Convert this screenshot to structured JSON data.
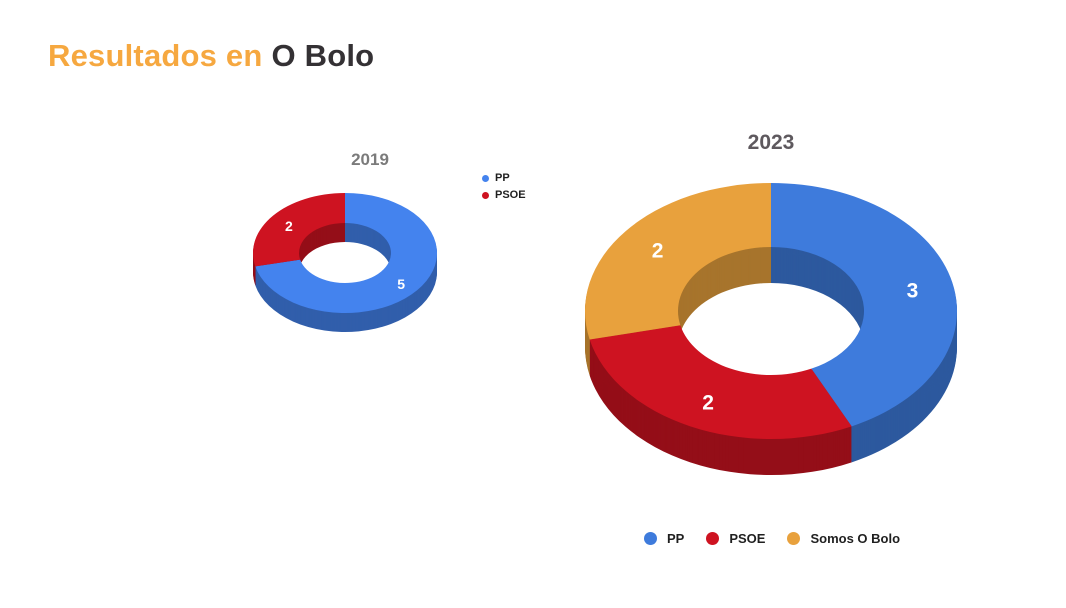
{
  "background": "#FFFFFF",
  "title": {
    "part1": "Resultados en",
    "part2": "O Bolo",
    "accent_color": "#F6A840",
    "dark_color": "#343134"
  },
  "legend_text_color": "#1F1F1F",
  "chart_data": [
    {
      "type": "pie",
      "subtype": "donut-3d",
      "title": "2019",
      "title_color": "#7B7B7B",
      "categories": [
        "PP",
        "PSOE"
      ],
      "values": [
        5,
        2
      ],
      "colors": [
        "#4483EE",
        "#CE1321"
      ],
      "data_label_color": "#FFFFFF",
      "legend_position": "right",
      "total_seats": 7,
      "start_angle_deg": 0,
      "direction": "clockwise"
    },
    {
      "type": "pie",
      "subtype": "donut-3d",
      "title": "2023",
      "title_color": "#5E595E",
      "categories": [
        "PP",
        "PSOE",
        "Somos O Bolo"
      ],
      "values": [
        3,
        2,
        2
      ],
      "colors": [
        "#3E7BDC",
        "#CE1321",
        "#E8A13D"
      ],
      "data_label_color": "#FFFFFF",
      "legend_position": "bottom",
      "total_seats": 7,
      "start_angle_deg": 0,
      "direction": "clockwise"
    }
  ]
}
